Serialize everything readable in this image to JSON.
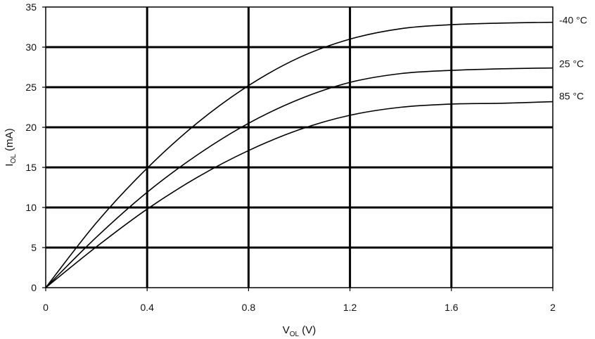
{
  "chart_data": {
    "type": "line",
    "title": "",
    "xlabel": {
      "main": "V",
      "sub": "OL",
      "unit": " (V)"
    },
    "ylabel": {
      "main": "I",
      "sub": "OL",
      "unit": " (mA)"
    },
    "xlim": [
      0,
      2
    ],
    "ylim": [
      0,
      35
    ],
    "xticks": [
      0,
      0.4,
      0.8,
      1.2,
      1.6,
      2
    ],
    "xtick_labels": [
      "0",
      "0.4",
      "0.8",
      "1.2",
      "1.6",
      "2"
    ],
    "yticks": [
      0,
      5,
      10,
      15,
      20,
      25,
      30,
      35
    ],
    "ytick_labels": [
      "0",
      "5",
      "10",
      "15",
      "20",
      "25",
      "30",
      "35"
    ],
    "grid": true,
    "legend": "inline-right",
    "x": [
      0,
      0.2,
      0.4,
      0.6,
      0.8,
      1.0,
      1.2,
      1.4,
      1.6,
      1.8,
      2.0
    ],
    "series": [
      {
        "name": "-40 °C",
        "values": [
          0,
          8.1,
          14.9,
          20.6,
          25.2,
          28.7,
          31.0,
          32.3,
          32.8,
          33.0,
          33.1
        ]
      },
      {
        "name": "25 °C",
        "values": [
          0,
          6.3,
          11.9,
          16.6,
          20.5,
          23.5,
          25.6,
          26.7,
          27.1,
          27.3,
          27.4
        ]
      },
      {
        "name": "85 °C",
        "values": [
          0,
          5.1,
          9.8,
          13.8,
          17.1,
          19.7,
          21.5,
          22.5,
          22.9,
          23.0,
          23.2
        ]
      }
    ]
  }
}
